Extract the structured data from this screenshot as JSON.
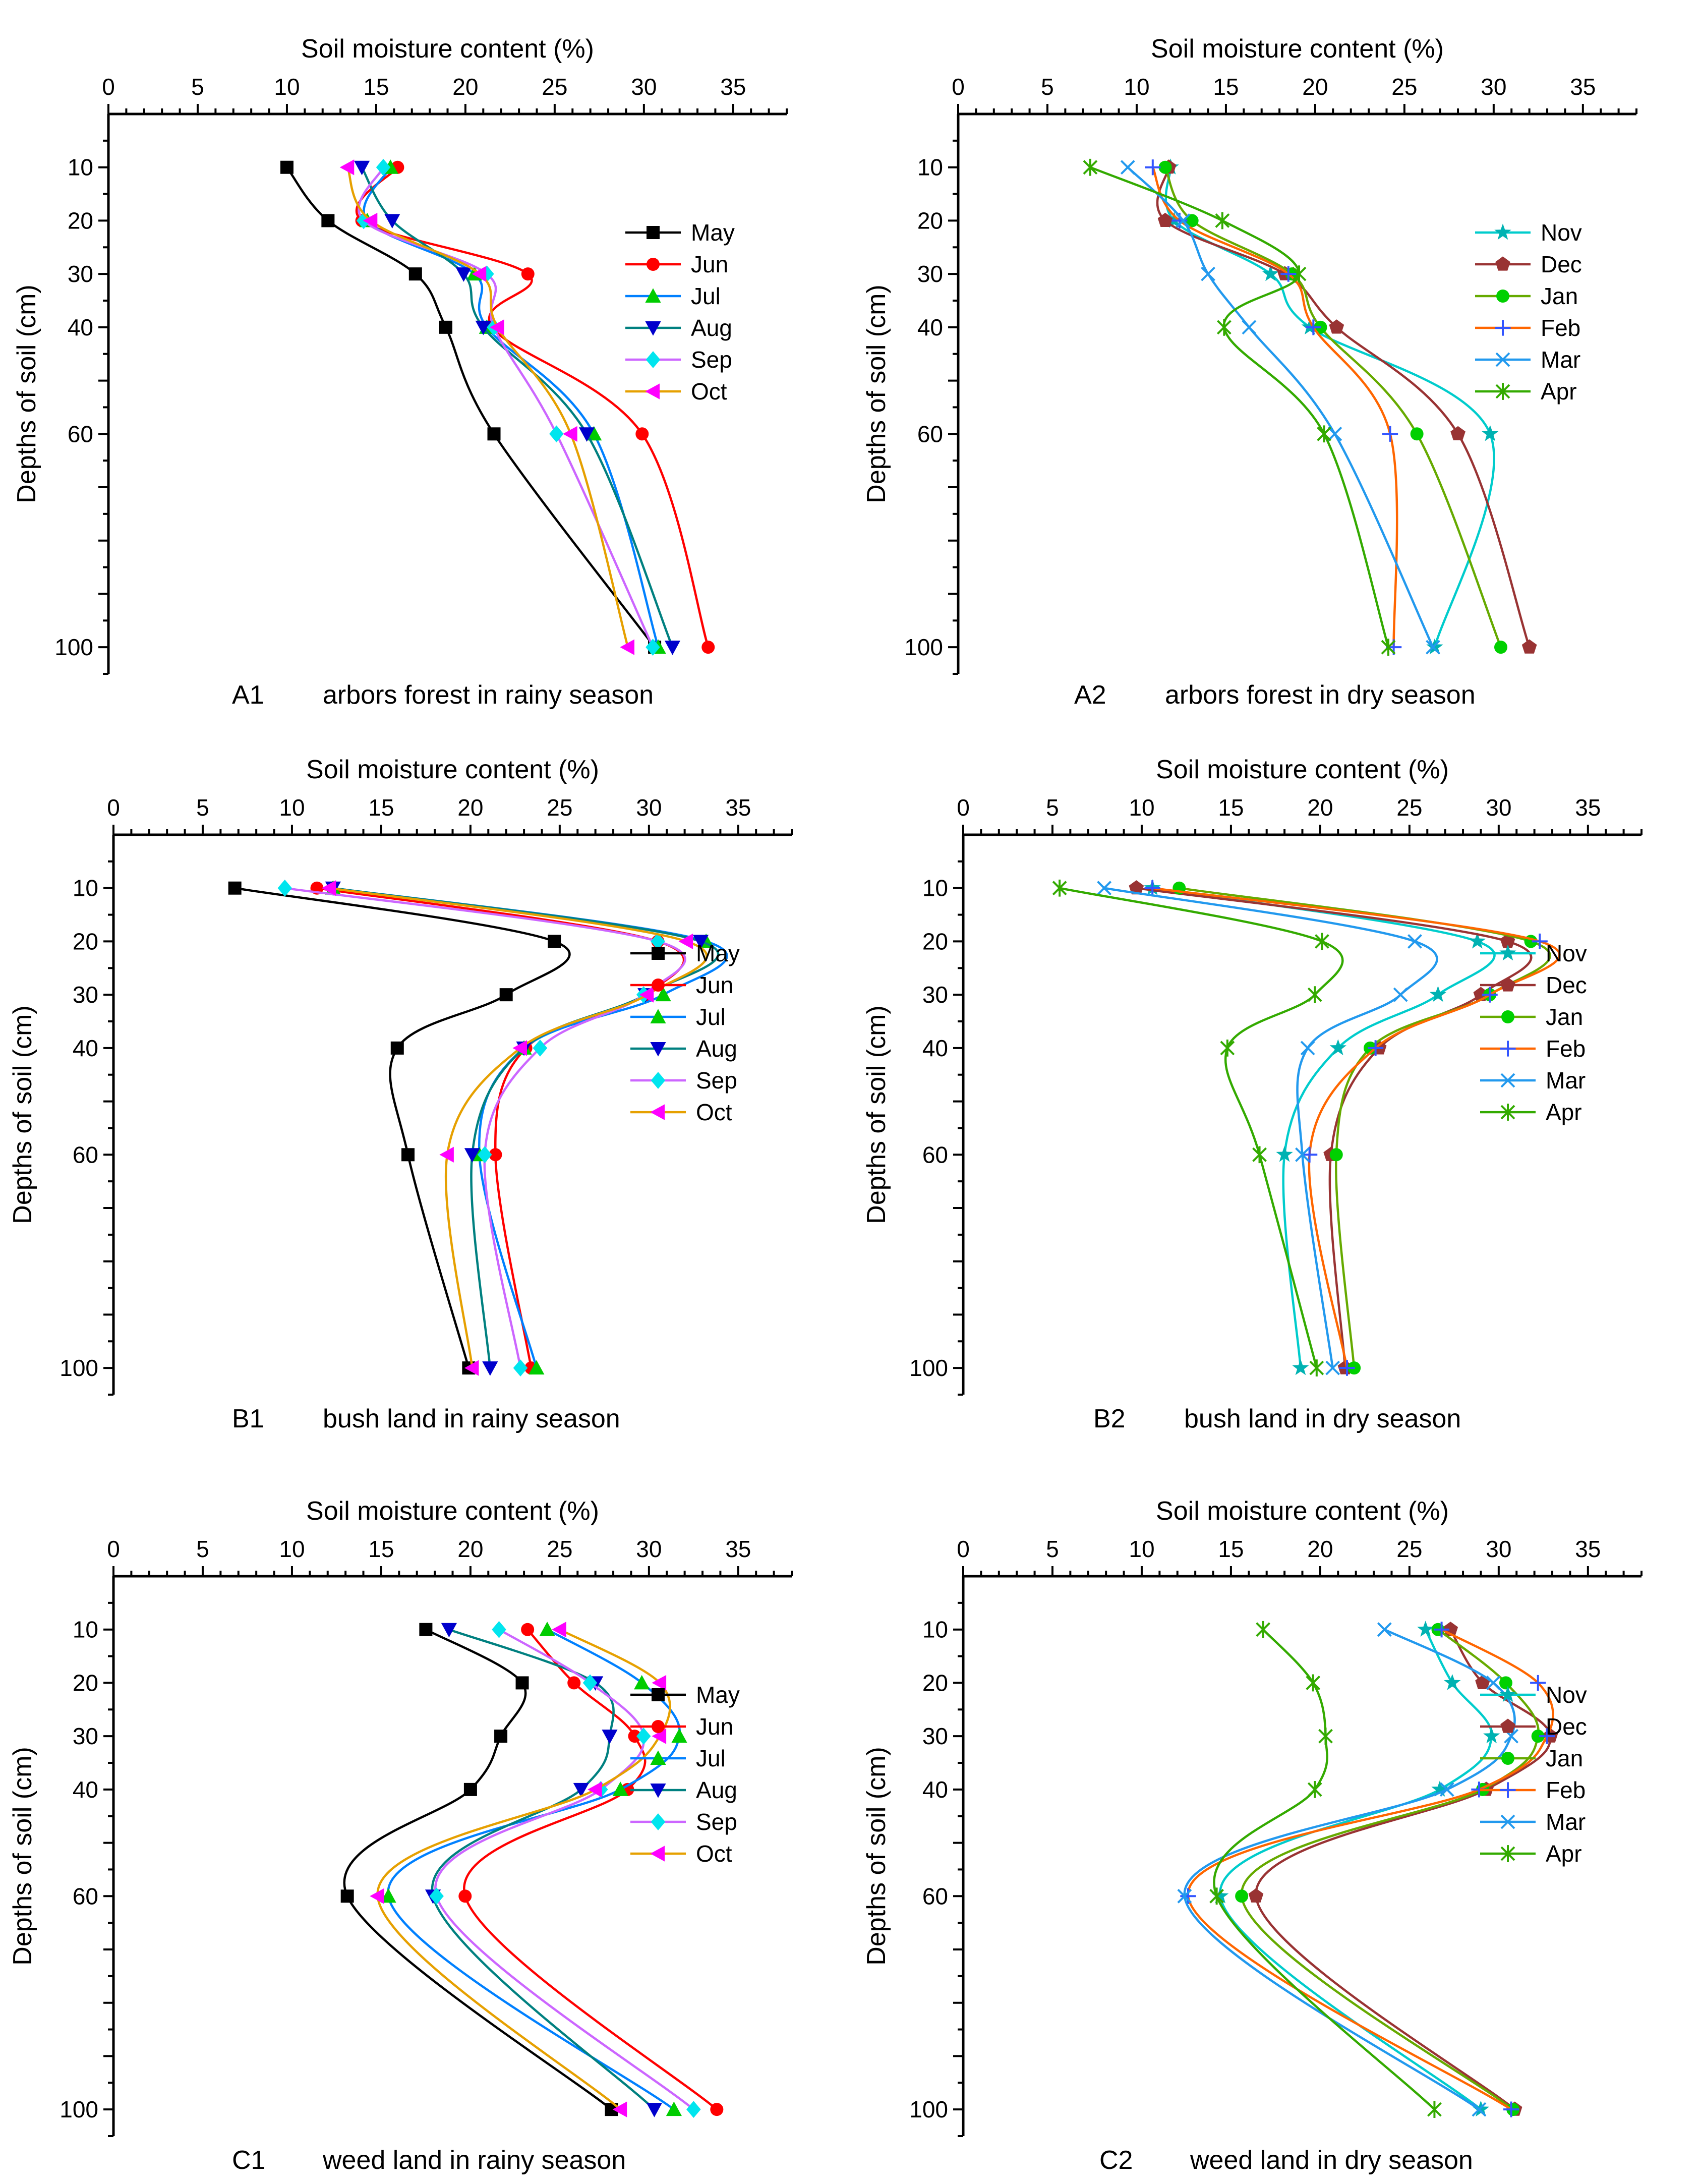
{
  "colors": {
    "May": "#000000",
    "Jun": "#ff0000",
    "Jul": "#00cc00",
    "Aug": "#0000cc",
    "Sep": "#00e5ee",
    "Oct": "#ff00ff",
    "Nov": "#00b2b2",
    "Dec": "#993333",
    "Jan": "#00d000",
    "Feb": "#3355ff",
    "Mar": "#2299ee",
    "Apr": "#33aa00"
  },
  "line_colors": {
    "May": "#000000",
    "Jun": "#ff0000",
    "Jul": "#0080ff",
    "Aug": "#008080",
    "Sep": "#cc66ff",
    "Oct": "#e6a000",
    "Nov": "#00cccc",
    "Dec": "#993333",
    "Jan": "#66aa00",
    "Feb": "#ff6600",
    "Mar": "#2299ee",
    "Apr": "#33aa00"
  },
  "chart_data": [
    {
      "id": "A1",
      "type": "line",
      "xlabel": "Soil moisture content (%)",
      "ylabel": "Depths of soil (cm)",
      "caption_id": "A1",
      "caption_text": "arbors forest in rainy season",
      "xlim": [
        0,
        38
      ],
      "xticks": [
        0,
        5,
        10,
        15,
        20,
        25,
        30,
        35
      ],
      "ylim": [
        0,
        105
      ],
      "yticks": [
        10,
        20,
        30,
        40,
        60,
        100
      ],
      "legend": "right",
      "series": [
        {
          "name": "May",
          "marker": "square",
          "values": [
            10.0,
            12.3,
            17.2,
            18.9,
            21.6,
            30.6
          ]
        },
        {
          "name": "Jun",
          "marker": "circle",
          "values": [
            16.2,
            14.2,
            23.5,
            21.5,
            29.9,
            33.6
          ]
        },
        {
          "name": "Jul",
          "marker": "triangle-up",
          "values": [
            15.8,
            14.5,
            20.5,
            21.2,
            27.2,
            30.8
          ]
        },
        {
          "name": "Aug",
          "marker": "triangle-down",
          "values": [
            14.2,
            15.9,
            19.9,
            21.0,
            26.8,
            31.6
          ]
        },
        {
          "name": "Sep",
          "marker": "diamond",
          "values": [
            15.4,
            14.3,
            21.2,
            21.6,
            25.1,
            30.5
          ]
        },
        {
          "name": "Oct",
          "marker": "triangle-left",
          "values": [
            13.4,
            14.7,
            20.8,
            21.8,
            25.9,
            29.1
          ]
        }
      ]
    },
    {
      "id": "A2",
      "type": "line",
      "xlabel": "Soil moisture content (%)",
      "ylabel": "Depths of soil (cm)",
      "caption_id": "A2",
      "caption_text": "arbors forest in dry season",
      "xlim": [
        0,
        38
      ],
      "xticks": [
        0,
        5,
        10,
        15,
        20,
        25,
        30,
        35
      ],
      "ylim": [
        0,
        105
      ],
      "yticks": [
        10,
        20,
        30,
        40,
        60,
        100
      ],
      "legend": "right",
      "series": [
        {
          "name": "Nov",
          "marker": "star",
          "values": [
            11.9,
            12.1,
            17.5,
            19.7,
            29.8,
            26.7
          ]
        },
        {
          "name": "Dec",
          "marker": "pentagon",
          "values": [
            11.8,
            11.6,
            18.3,
            21.2,
            28.0,
            32.0
          ]
        },
        {
          "name": "Jan",
          "marker": "circle",
          "values": [
            11.6,
            13.1,
            18.7,
            20.3,
            25.7,
            30.4
          ]
        },
        {
          "name": "Feb",
          "marker": "plus",
          "values": [
            10.9,
            12.4,
            18.5,
            19.9,
            24.2,
            24.4
          ]
        },
        {
          "name": "Mar",
          "marker": "x",
          "values": [
            9.5,
            12.6,
            14.0,
            16.3,
            21.1,
            26.6
          ]
        },
        {
          "name": "Apr",
          "marker": "asterisk",
          "values": [
            7.4,
            14.8,
            19.1,
            14.9,
            20.5,
            24.1
          ]
        }
      ]
    },
    {
      "id": "B1",
      "type": "line",
      "xlabel": "Soil moisture content (%)",
      "ylabel": "Depths of soil (cm)",
      "caption_id": "B1",
      "caption_text": "bush land  in rainy season",
      "xlim": [
        0,
        38
      ],
      "xticks": [
        0,
        5,
        10,
        15,
        20,
        25,
        30,
        35
      ],
      "ylim": [
        0,
        105
      ],
      "yticks": [
        10,
        20,
        30,
        40,
        60,
        100
      ],
      "legend": "right",
      "series": [
        {
          "name": "May",
          "marker": "square",
          "values": [
            6.8,
            24.7,
            22.0,
            15.9,
            16.5,
            19.9
          ]
        },
        {
          "name": "Jun",
          "marker": "circle",
          "values": [
            11.4,
            30.5,
            29.8,
            23.1,
            21.4,
            23.4
          ]
        },
        {
          "name": "Jul",
          "marker": "triangle-up",
          "values": [
            12.3,
            33.2,
            30.8,
            23.0,
            20.5,
            23.7
          ]
        },
        {
          "name": "Aug",
          "marker": "triangle-down",
          "values": [
            12.3,
            32.9,
            29.8,
            23.0,
            20.1,
            21.1
          ]
        },
        {
          "name": "Sep",
          "marker": "diamond",
          "values": [
            9.6,
            30.5,
            29.7,
            23.9,
            20.8,
            22.8
          ]
        },
        {
          "name": "Oct",
          "marker": "triangle-left",
          "values": [
            12.1,
            32.1,
            29.9,
            22.8,
            18.7,
            20.1
          ]
        }
      ]
    },
    {
      "id": "B2",
      "type": "line",
      "xlabel": "Soil moisture content (%)",
      "ylabel": "Depths of soil (cm)",
      "caption_id": "B2",
      "caption_text": "bush land  in dry season",
      "xlim": [
        0,
        38
      ],
      "xticks": [
        0,
        5,
        10,
        15,
        20,
        25,
        30,
        35
      ],
      "ylim": [
        0,
        105
      ],
      "yticks": [
        10,
        20,
        30,
        40,
        60,
        100
      ],
      "legend": "right",
      "series": [
        {
          "name": "Nov",
          "marker": "star",
          "values": [
            10.6,
            28.8,
            26.6,
            21.0,
            18.0,
            18.9
          ]
        },
        {
          "name": "Dec",
          "marker": "pentagon",
          "values": [
            9.7,
            30.5,
            29.0,
            23.3,
            20.6,
            21.4
          ]
        },
        {
          "name": "Jan",
          "marker": "circle",
          "values": [
            12.1,
            31.8,
            29.5,
            22.8,
            20.9,
            21.9
          ]
        },
        {
          "name": "Feb",
          "marker": "plus",
          "values": [
            10.6,
            32.3,
            29.5,
            23.1,
            19.4,
            21.5
          ]
        },
        {
          "name": "Mar",
          "marker": "x",
          "values": [
            7.9,
            25.3,
            24.5,
            19.3,
            19.0,
            20.7
          ]
        },
        {
          "name": "Apr",
          "marker": "asterisk",
          "values": [
            5.4,
            20.1,
            19.7,
            14.8,
            16.6,
            19.8
          ]
        }
      ]
    },
    {
      "id": "C1",
      "type": "line",
      "xlabel": "Soil moisture content (%)",
      "ylabel": "Depths of soil (cm)",
      "caption_id": "C1",
      "caption_text": "weed land in rainy season",
      "xlim": [
        0,
        38
      ],
      "xticks": [
        0,
        5,
        10,
        15,
        20,
        25,
        30,
        35
      ],
      "ylim": [
        0,
        105
      ],
      "yticks": [
        10,
        20,
        30,
        40,
        60,
        100
      ],
      "legend": "right",
      "series": [
        {
          "name": "May",
          "marker": "square",
          "values": [
            17.5,
            22.9,
            21.7,
            20.0,
            13.1,
            27.9
          ]
        },
        {
          "name": "Jun",
          "marker": "circle",
          "values": [
            23.2,
            25.8,
            29.2,
            28.8,
            19.7,
            33.8
          ]
        },
        {
          "name": "Jul",
          "marker": "triangle-up",
          "values": [
            24.3,
            29.6,
            31.7,
            28.4,
            15.4,
            31.4
          ]
        },
        {
          "name": "Aug",
          "marker": "triangle-down",
          "values": [
            18.8,
            27.0,
            27.8,
            26.2,
            17.9,
            30.3
          ]
        },
        {
          "name": "Sep",
          "marker": "diamond",
          "values": [
            21.6,
            26.7,
            29.7,
            27.3,
            18.1,
            32.5
          ]
        },
        {
          "name": "Oct",
          "marker": "triangle-left",
          "values": [
            25.0,
            30.6,
            30.6,
            27.0,
            14.8,
            28.4
          ]
        }
      ]
    },
    {
      "id": "C2",
      "type": "line",
      "xlabel": "Soil moisture content (%)",
      "ylabel": "Depths of soil (cm)",
      "caption_id": "C2",
      "caption_text": "weed land in dry season",
      "xlim": [
        0,
        38
      ],
      "xticks": [
        0,
        5,
        10,
        15,
        20,
        25,
        30,
        35
      ],
      "ylim": [
        0,
        105
      ],
      "yticks": [
        10,
        20,
        30,
        40,
        60,
        100
      ],
      "legend": "right",
      "series": [
        {
          "name": "Nov",
          "marker": "star",
          "values": [
            25.9,
            27.4,
            29.6,
            26.7,
            14.4,
            29.0
          ]
        },
        {
          "name": "Dec",
          "marker": "pentagon",
          "values": [
            27.3,
            29.1,
            32.9,
            29.3,
            16.4,
            30.9
          ]
        },
        {
          "name": "Jan",
          "marker": "circle",
          "values": [
            26.6,
            30.4,
            32.2,
            29.1,
            15.6,
            30.8
          ]
        },
        {
          "name": "Feb",
          "marker": "plus",
          "values": [
            26.8,
            32.2,
            32.7,
            28.9,
            12.6,
            30.7
          ]
        },
        {
          "name": "Mar",
          "marker": "x",
          "values": [
            23.6,
            29.7,
            30.7,
            27.1,
            12.4,
            28.9
          ]
        },
        {
          "name": "Apr",
          "marker": "asterisk",
          "values": [
            16.8,
            19.6,
            20.3,
            19.7,
            14.2,
            26.4
          ]
        }
      ]
    }
  ]
}
